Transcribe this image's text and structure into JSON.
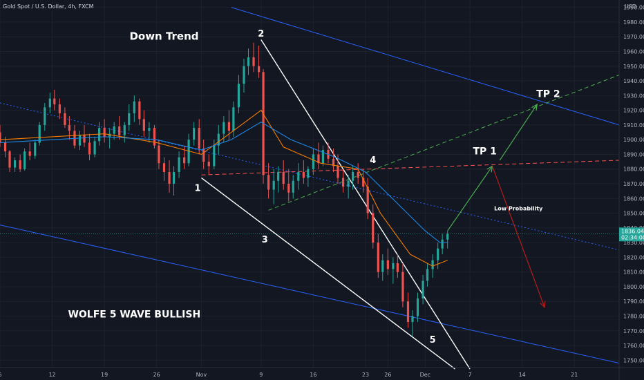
{
  "chart_data": {
    "type": "candlestick",
    "title": "Gold Spot / U.S. Dollar, 4h, FXCM",
    "currency": "USD",
    "price_axis": {
      "ticks": [
        1990,
        1980,
        1970,
        1960,
        1950,
        1940,
        1930,
        1920,
        1910,
        1900,
        1890,
        1880,
        1870,
        1860,
        1850,
        1840,
        1830,
        1820,
        1810,
        1800,
        1790,
        1780,
        1770,
        1760,
        1750
      ],
      "range": [
        1745,
        1995
      ]
    },
    "time_axis": {
      "labels": [
        "5",
        "12",
        "19",
        "26",
        "Nov",
        "9",
        "16",
        "23",
        "26",
        "Dec",
        "7",
        "14",
        "21"
      ],
      "label_days": [
        5,
        12,
        19,
        26,
        32,
        40,
        47,
        54,
        57,
        62,
        68,
        75,
        82
      ],
      "range_days": [
        5,
        88
      ]
    },
    "current_price": {
      "value": "1836.04",
      "price": 1836.04,
      "countdown": "02:34:00"
    },
    "candles": [
      [
        5.0,
        1905,
        1910,
        1895,
        1898
      ],
      [
        5.7,
        1898,
        1902,
        1888,
        1892
      ],
      [
        6.3,
        1892,
        1893,
        1878,
        1881
      ],
      [
        7.0,
        1881,
        1888,
        1878,
        1886
      ],
      [
        7.7,
        1886,
        1890,
        1878,
        1880
      ],
      [
        8.3,
        1880,
        1894,
        1879,
        1892
      ],
      [
        9.0,
        1892,
        1898,
        1886,
        1889
      ],
      [
        9.7,
        1889,
        1900,
        1887,
        1898
      ],
      [
        10.3,
        1898,
        1912,
        1896,
        1910
      ],
      [
        11.0,
        1910,
        1925,
        1906,
        1922
      ],
      [
        11.7,
        1922,
        1932,
        1918,
        1928
      ],
      [
        12.3,
        1928,
        1934,
        1920,
        1924
      ],
      [
        13.0,
        1924,
        1928,
        1914,
        1918
      ],
      [
        13.7,
        1918,
        1922,
        1908,
        1910
      ],
      [
        14.3,
        1910,
        1916,
        1900,
        1906
      ],
      [
        15.0,
        1906,
        1910,
        1894,
        1896
      ],
      [
        15.7,
        1896,
        1906,
        1893,
        1903
      ],
      [
        16.3,
        1903,
        1910,
        1895,
        1898
      ],
      [
        17.0,
        1898,
        1904,
        1886,
        1890
      ],
      [
        17.7,
        1890,
        1902,
        1888,
        1899
      ],
      [
        18.3,
        1899,
        1912,
        1896,
        1908
      ],
      [
        19.0,
        1908,
        1914,
        1898,
        1902
      ],
      [
        19.7,
        1902,
        1908,
        1894,
        1904
      ],
      [
        20.3,
        1904,
        1912,
        1900,
        1909
      ],
      [
        21.0,
        1909,
        1916,
        1900,
        1903
      ],
      [
        21.7,
        1903,
        1912,
        1898,
        1910
      ],
      [
        22.3,
        1910,
        1924,
        1906,
        1918
      ],
      [
        23.0,
        1918,
        1930,
        1912,
        1926
      ],
      [
        23.7,
        1926,
        1928,
        1910,
        1914
      ],
      [
        24.3,
        1914,
        1920,
        1902,
        1906
      ],
      [
        25.0,
        1906,
        1912,
        1898,
        1908
      ],
      [
        25.7,
        1908,
        1910,
        1894,
        1896
      ],
      [
        26.3,
        1896,
        1900,
        1880,
        1884
      ],
      [
        27.0,
        1884,
        1888,
        1872,
        1878
      ],
      [
        27.7,
        1878,
        1886,
        1864,
        1870
      ],
      [
        28.3,
        1870,
        1882,
        1862,
        1878
      ],
      [
        29.0,
        1878,
        1892,
        1874,
        1888
      ],
      [
        29.7,
        1888,
        1896,
        1880,
        1884
      ],
      [
        30.3,
        1884,
        1904,
        1882,
        1900
      ],
      [
        31.0,
        1900,
        1912,
        1896,
        1908
      ],
      [
        31.7,
        1908,
        1914,
        1890,
        1894
      ],
      [
        32.3,
        1894,
        1900,
        1880,
        1885
      ],
      [
        33.0,
        1885,
        1890,
        1876,
        1882
      ],
      [
        33.7,
        1882,
        1900,
        1880,
        1896
      ],
      [
        34.3,
        1896,
        1910,
        1890,
        1904
      ],
      [
        35.0,
        1904,
        1916,
        1898,
        1912
      ],
      [
        35.7,
        1912,
        1920,
        1900,
        1906
      ],
      [
        36.3,
        1906,
        1926,
        1902,
        1922
      ],
      [
        37.0,
        1922,
        1944,
        1918,
        1938
      ],
      [
        37.7,
        1938,
        1955,
        1932,
        1950
      ],
      [
        38.3,
        1950,
        1962,
        1944,
        1956
      ],
      [
        39.0,
        1956,
        1966,
        1946,
        1950
      ],
      [
        39.7,
        1950,
        1964,
        1942,
        1946
      ],
      [
        40.3,
        1946,
        1948,
        1870,
        1876
      ],
      [
        41.0,
        1876,
        1884,
        1860,
        1866
      ],
      [
        41.7,
        1866,
        1880,
        1856,
        1872
      ],
      [
        42.3,
        1872,
        1882,
        1864,
        1878
      ],
      [
        43.0,
        1878,
        1886,
        1866,
        1870
      ],
      [
        43.7,
        1870,
        1880,
        1858,
        1864
      ],
      [
        44.3,
        1864,
        1876,
        1860,
        1872
      ],
      [
        45.0,
        1872,
        1884,
        1866,
        1878
      ],
      [
        45.7,
        1878,
        1886,
        1870,
        1874
      ],
      [
        46.3,
        1874,
        1882,
        1868,
        1880
      ],
      [
        47.0,
        1880,
        1894,
        1876,
        1890
      ],
      [
        47.7,
        1890,
        1898,
        1880,
        1884
      ],
      [
        48.3,
        1884,
        1896,
        1882,
        1893
      ],
      [
        49.0,
        1893,
        1898,
        1884,
        1887
      ],
      [
        49.7,
        1887,
        1894,
        1878,
        1882
      ],
      [
        50.3,
        1882,
        1890,
        1870,
        1874
      ],
      [
        51.0,
        1874,
        1880,
        1864,
        1868
      ],
      [
        51.7,
        1868,
        1876,
        1860,
        1872
      ],
      [
        52.3,
        1872,
        1882,
        1866,
        1878
      ],
      [
        53.0,
        1878,
        1884,
        1870,
        1874
      ],
      [
        53.7,
        1874,
        1880,
        1864,
        1868
      ],
      [
        54.3,
        1868,
        1874,
        1846,
        1850
      ],
      [
        55.0,
        1850,
        1856,
        1826,
        1830
      ],
      [
        55.7,
        1830,
        1836,
        1806,
        1810
      ],
      [
        56.3,
        1810,
        1822,
        1804,
        1818
      ],
      [
        57.0,
        1818,
        1826,
        1808,
        1812
      ],
      [
        57.7,
        1812,
        1820,
        1802,
        1816
      ],
      [
        58.3,
        1816,
        1822,
        1806,
        1810
      ],
      [
        59.0,
        1810,
        1816,
        1786,
        1790
      ],
      [
        59.7,
        1790,
        1796,
        1772,
        1776
      ],
      [
        60.3,
        1776,
        1784,
        1766,
        1780
      ],
      [
        61.0,
        1780,
        1796,
        1776,
        1792
      ],
      [
        61.7,
        1792,
        1808,
        1788,
        1804
      ],
      [
        62.3,
        1804,
        1816,
        1800,
        1812
      ],
      [
        63.0,
        1812,
        1822,
        1806,
        1818
      ],
      [
        63.7,
        1818,
        1830,
        1812,
        1826
      ],
      [
        64.3,
        1826,
        1836,
        1822,
        1832
      ],
      [
        65.0,
        1832,
        1838,
        1826,
        1836
      ]
    ],
    "moving_averages": [
      {
        "name": "",
        "color": "#f57c00",
        "points": [
          [
            5,
            1900
          ],
          [
            12,
            1902
          ],
          [
            19,
            1904
          ],
          [
            26,
            1898
          ],
          [
            32,
            1890
          ],
          [
            36,
            1905
          ],
          [
            40,
            1920
          ],
          [
            43,
            1895
          ],
          [
            48,
            1884
          ],
          [
            53,
            1880
          ],
          [
            56,
            1850
          ],
          [
            60,
            1822
          ],
          [
            63,
            1814
          ],
          [
            65,
            1818
          ]
        ]
      },
      {
        "name": "",
        "color": "#1e88e5",
        "points": [
          [
            5,
            1898
          ],
          [
            12,
            1900
          ],
          [
            19,
            1902
          ],
          [
            26,
            1900
          ],
          [
            32,
            1893
          ],
          [
            36,
            1900
          ],
          [
            40,
            1912
          ],
          [
            44,
            1900
          ],
          [
            50,
            1888
          ],
          [
            54,
            1878
          ],
          [
            58,
            1858
          ],
          [
            62,
            1838
          ],
          [
            64,
            1830
          ],
          [
            65,
            1830
          ]
        ]
      }
    ],
    "trendlines": [
      {
        "name": "channel-upper-line",
        "color": "#2962ff",
        "from": [
          36,
          1990
        ],
        "to": [
          88,
          1910
        ]
      },
      {
        "name": "channel-lower-line",
        "color": "#2962ff",
        "from": [
          5,
          1842
        ],
        "to": [
          88,
          1748
        ]
      },
      {
        "name": "wedge-upper-line",
        "color": "#ffffff",
        "from": [
          40,
          1968
        ],
        "to": [
          68,
          1744
        ]
      },
      {
        "name": "wedge-lower-line",
        "color": "#ffffff",
        "from": [
          32,
          1874
        ],
        "to": [
          66,
          1744
        ]
      },
      {
        "name": "wave-1-4-dashed-line",
        "color": "#ff5252",
        "dashed": true,
        "from": [
          32,
          1876
        ],
        "to": [
          88,
          1886
        ]
      },
      {
        "name": "wave-3-4-dashed-line",
        "color": "#4caf50",
        "dashed": true,
        "from": [
          41,
          1852
        ],
        "to": [
          88,
          1944
        ]
      },
      {
        "name": "mid-dotted-line",
        "color": "#2962ff",
        "dotted": true,
        "from": [
          5,
          1925
        ],
        "to": [
          88,
          1825
        ]
      }
    ],
    "arrows": [
      {
        "name": "arrow-to-tp1",
        "color": "#4caf50",
        "from": [
          65,
          1838
        ],
        "to": [
          71,
          1882
        ]
      },
      {
        "name": "arrow-to-tp2",
        "color": "#4caf50",
        "from": [
          72,
          1886
        ],
        "to": [
          77,
          1924
        ]
      },
      {
        "name": "arrow-low-probability",
        "color": "#b71c1c",
        "from": [
          71,
          1882
        ],
        "to": [
          78,
          1786
        ]
      }
    ],
    "annotations": [
      {
        "id": "down-trend",
        "text": "Down Trend",
        "day": 27,
        "price": 1968,
        "size": 15
      },
      {
        "id": "wave-2",
        "text": "2",
        "day": 40,
        "price": 1970,
        "size": 13
      },
      {
        "id": "wave-1",
        "text": "1",
        "day": 31.5,
        "price": 1865,
        "size": 13
      },
      {
        "id": "wave-3",
        "text": "3",
        "day": 40.5,
        "price": 1830,
        "size": 13
      },
      {
        "id": "wave-4",
        "text": "4",
        "day": 55,
        "price": 1884,
        "size": 13
      },
      {
        "id": "wave-5",
        "text": "5",
        "day": 63,
        "price": 1762,
        "size": 13
      },
      {
        "id": "tp1",
        "text": "TP 1",
        "day": 70,
        "price": 1890,
        "size": 14
      },
      {
        "id": "tp2",
        "text": "TP 2",
        "day": 78.5,
        "price": 1929,
        "size": 14
      },
      {
        "id": "low-probability",
        "text": "Low Probability",
        "day": 74.5,
        "price": 1852,
        "size": 8
      },
      {
        "id": "wolfe-label",
        "text": "WOLFE 5 WAVE BULLISH",
        "day": 23,
        "price": 1779,
        "size": 14
      }
    ]
  }
}
